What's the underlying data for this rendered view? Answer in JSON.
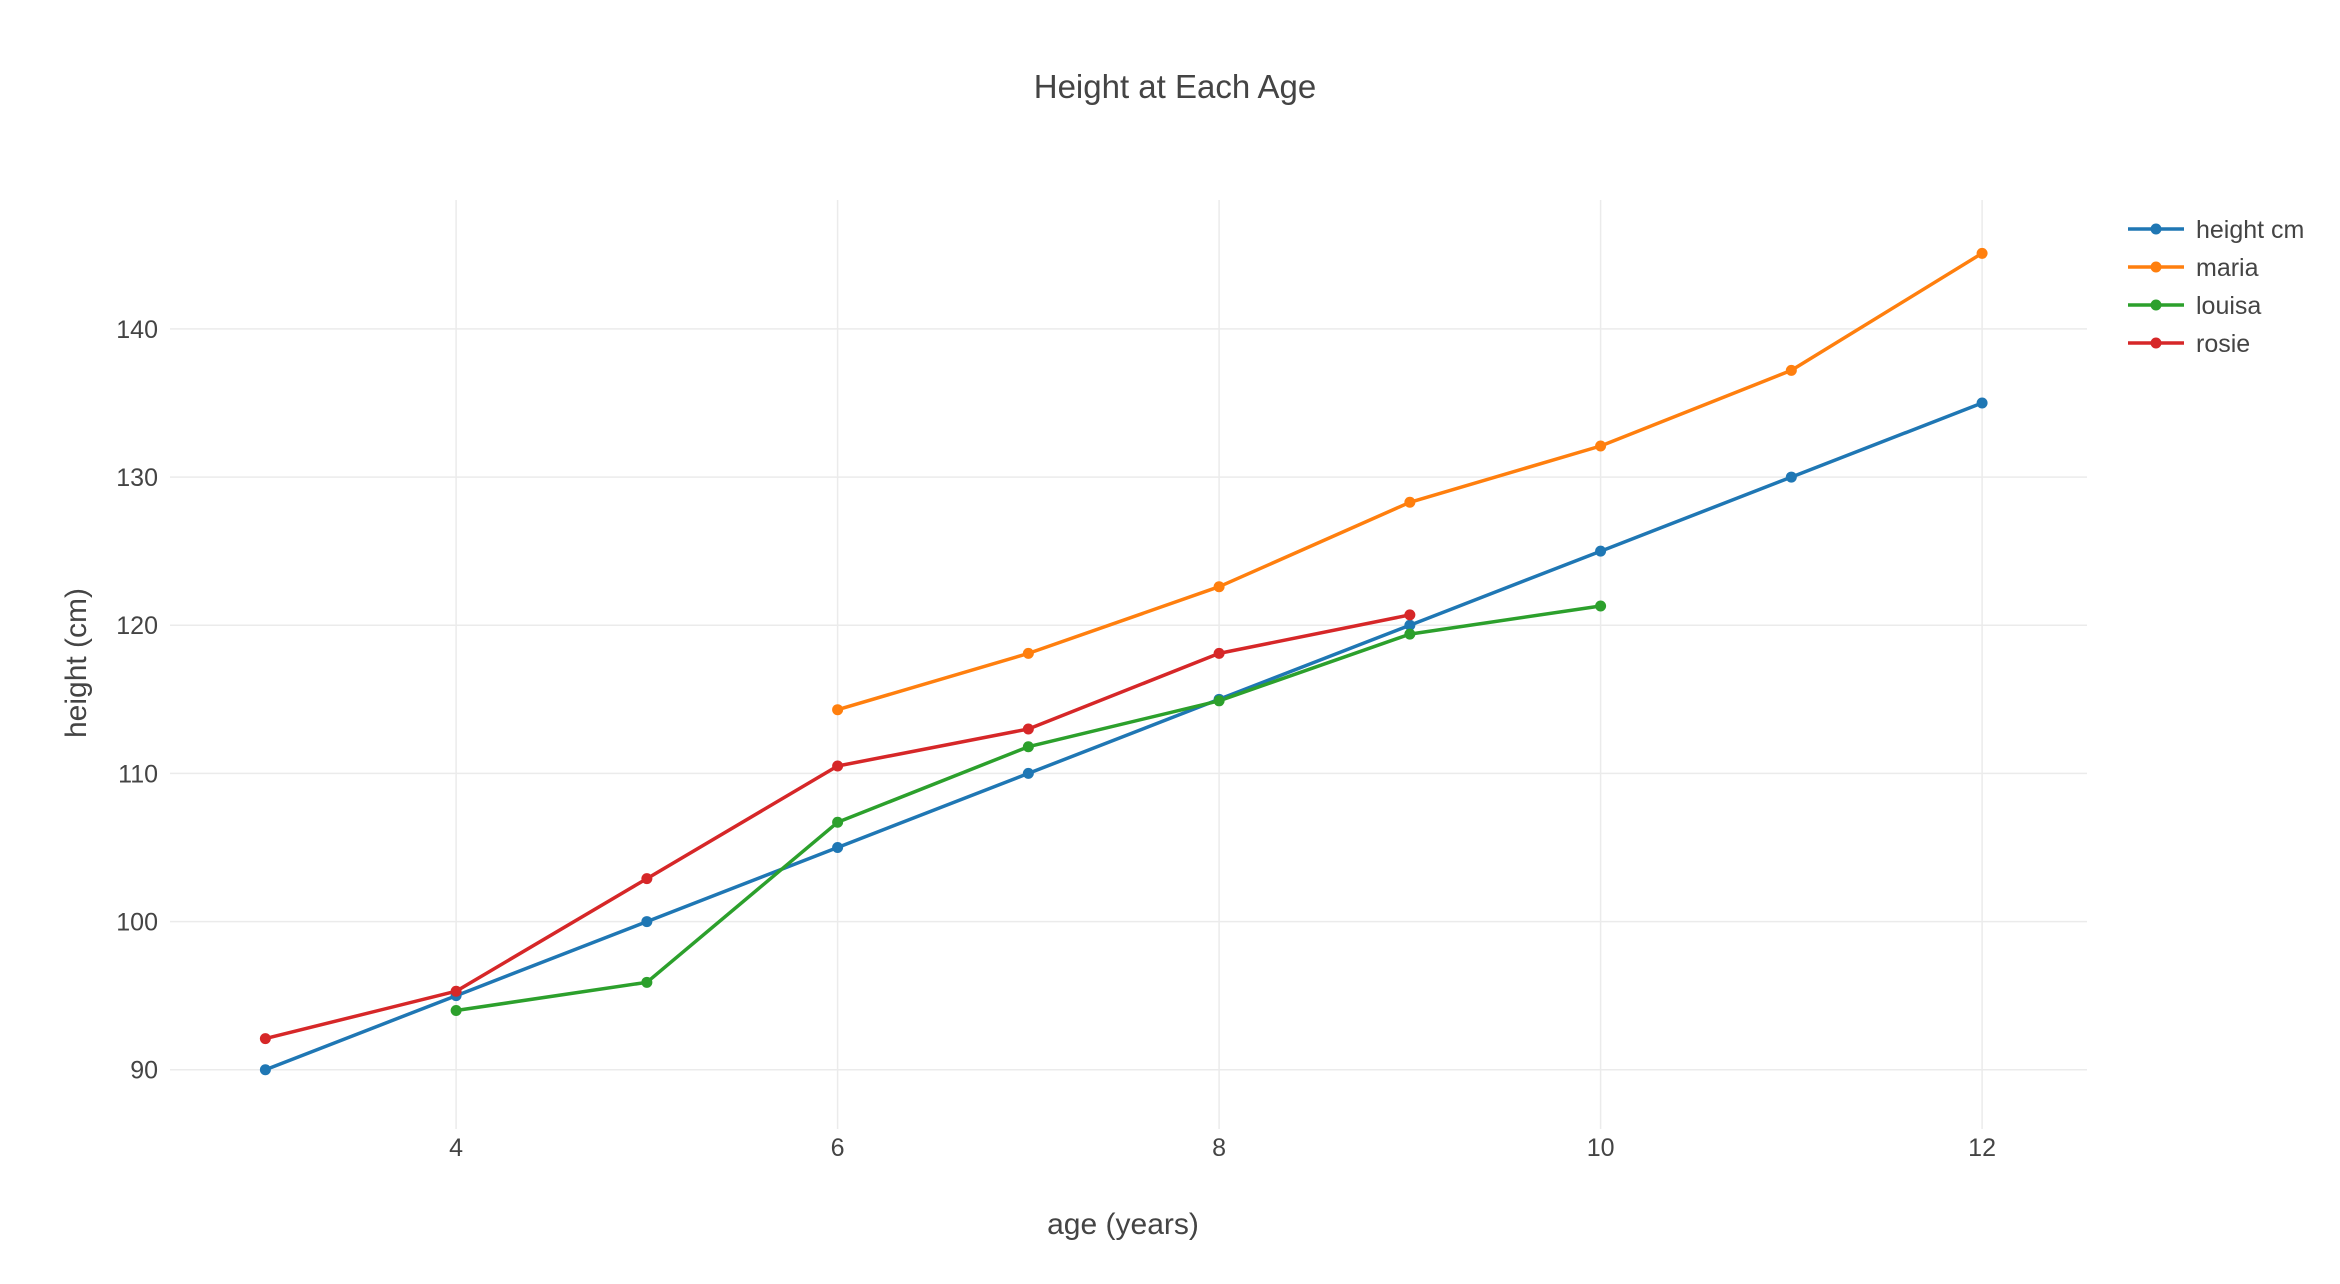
{
  "chart_data": {
    "type": "line",
    "title": "Height at Each Age",
    "xlabel": "age (years)",
    "ylabel": "height (cm)",
    "xlim": [
      2.5,
      12.55
    ],
    "ylim": [
      86,
      148.7
    ],
    "xticks": [
      4,
      6,
      8,
      10,
      12
    ],
    "yticks": [
      90,
      100,
      110,
      120,
      130,
      140
    ],
    "grid": true,
    "legend_position": "top-right",
    "series": [
      {
        "name": "height cm",
        "color": "#1f77b4",
        "x": [
          3,
          4,
          5,
          6,
          7,
          8,
          9,
          10,
          11,
          12
        ],
        "y": [
          90,
          95,
          100,
          105,
          110,
          115,
          120,
          125,
          130,
          135
        ]
      },
      {
        "name": "maria",
        "color": "#ff7f0e",
        "x": [
          6,
          7,
          8,
          9,
          10,
          11,
          12
        ],
        "y": [
          114.3,
          118.1,
          122.6,
          128.3,
          132.1,
          137.2,
          145.1
        ]
      },
      {
        "name": "louisa",
        "color": "#2ca02c",
        "x": [
          4,
          5,
          6,
          7,
          8,
          9,
          10
        ],
        "y": [
          94,
          95.9,
          106.7,
          111.8,
          114.9,
          119.4,
          121.3
        ]
      },
      {
        "name": "rosie",
        "color": "#d62728",
        "x": [
          3,
          4,
          5,
          6,
          7,
          8,
          9
        ],
        "y": [
          92.1,
          95.3,
          102.9,
          110.5,
          113,
          118.1,
          120.7
        ]
      }
    ]
  }
}
